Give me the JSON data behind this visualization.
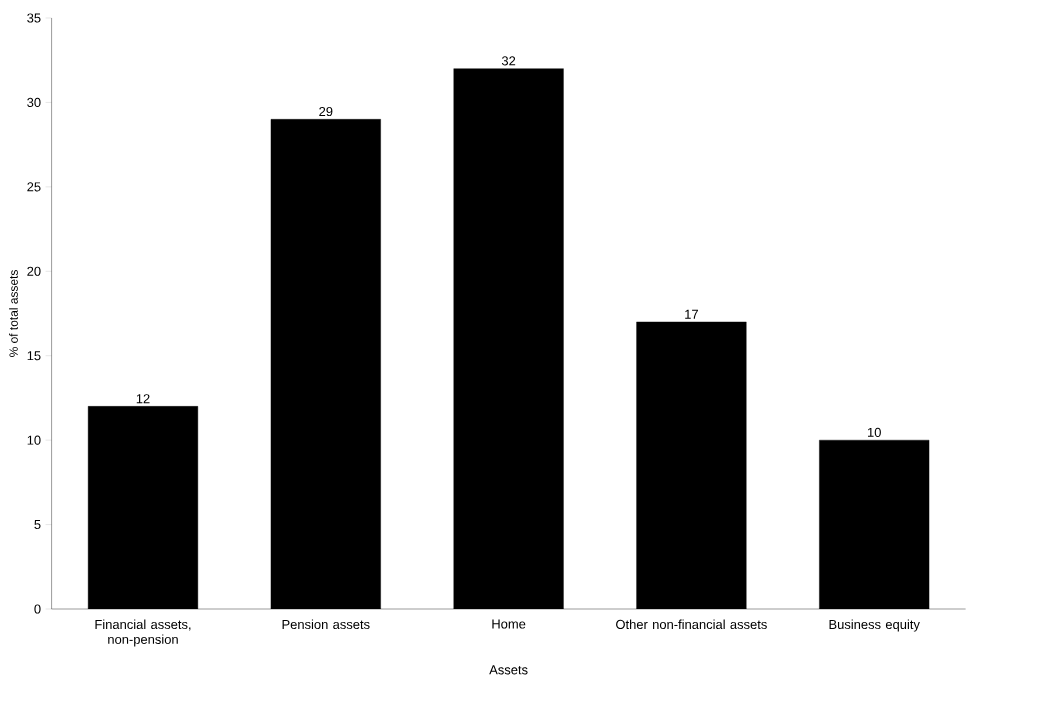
{
  "chart_data": {
    "type": "bar",
    "xlabel": "Assets",
    "ylabel": "% of total assets",
    "categories": [
      "Financial assets, non-pension",
      "Pension assets",
      "Home",
      "Other non-financial assets",
      "Business equity"
    ],
    "values": [
      12,
      29,
      32,
      17,
      10
    ],
    "color": "#000000",
    "data_labels": true,
    "grid": false,
    "ylim": [
      0,
      35
    ],
    "yticks": [
      0,
      5,
      10,
      15,
      20,
      25,
      30,
      35
    ]
  }
}
